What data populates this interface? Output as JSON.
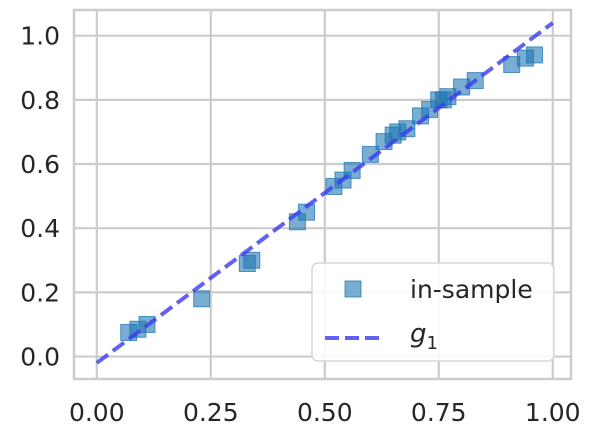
{
  "chart_data": {
    "type": "scatter",
    "title": "",
    "xlabel": "",
    "ylabel": "",
    "xlim": [
      -0.05,
      1.04
    ],
    "ylim": [
      -0.07,
      1.08
    ],
    "xticks": [
      0.0,
      0.25,
      0.5,
      0.75,
      1.0
    ],
    "xtick_labels": [
      "0.00",
      "0.25",
      "0.50",
      "0.75",
      "1.00"
    ],
    "yticks": [
      0.0,
      0.2,
      0.4,
      0.6,
      0.8,
      1.0
    ],
    "ytick_labels": [
      "0.0",
      "0.2",
      "0.4",
      "0.6",
      "0.8",
      "1.0"
    ],
    "grid": true,
    "legend_position": "bottom-right",
    "series": [
      {
        "name": "in-sample",
        "kind": "scatter",
        "marker": "square",
        "color": "#1f77b4",
        "points": [
          {
            "x": 0.07,
            "y": 0.075
          },
          {
            "x": 0.09,
            "y": 0.085
          },
          {
            "x": 0.11,
            "y": 0.1
          },
          {
            "x": 0.23,
            "y": 0.18
          },
          {
            "x": 0.33,
            "y": 0.29
          },
          {
            "x": 0.34,
            "y": 0.3
          },
          {
            "x": 0.44,
            "y": 0.42
          },
          {
            "x": 0.46,
            "y": 0.45
          },
          {
            "x": 0.52,
            "y": 0.53
          },
          {
            "x": 0.54,
            "y": 0.55
          },
          {
            "x": 0.56,
            "y": 0.58
          },
          {
            "x": 0.6,
            "y": 0.63
          },
          {
            "x": 0.63,
            "y": 0.67
          },
          {
            "x": 0.65,
            "y": 0.69
          },
          {
            "x": 0.66,
            "y": 0.7
          },
          {
            "x": 0.68,
            "y": 0.71
          },
          {
            "x": 0.71,
            "y": 0.75
          },
          {
            "x": 0.73,
            "y": 0.77
          },
          {
            "x": 0.75,
            "y": 0.8
          },
          {
            "x": 0.76,
            "y": 0.8
          },
          {
            "x": 0.77,
            "y": 0.81
          },
          {
            "x": 0.8,
            "y": 0.84
          },
          {
            "x": 0.83,
            "y": 0.86
          },
          {
            "x": 0.91,
            "y": 0.91
          },
          {
            "x": 0.94,
            "y": 0.93
          },
          {
            "x": 0.96,
            "y": 0.94
          }
        ]
      },
      {
        "name": "g1",
        "name_main": "g",
        "name_sub": "1",
        "kind": "line",
        "style": "dashed",
        "color": "#3b3bef",
        "points": [
          {
            "x": 0.0,
            "y": -0.02
          },
          {
            "x": 1.0,
            "y": 1.04
          }
        ]
      }
    ]
  }
}
